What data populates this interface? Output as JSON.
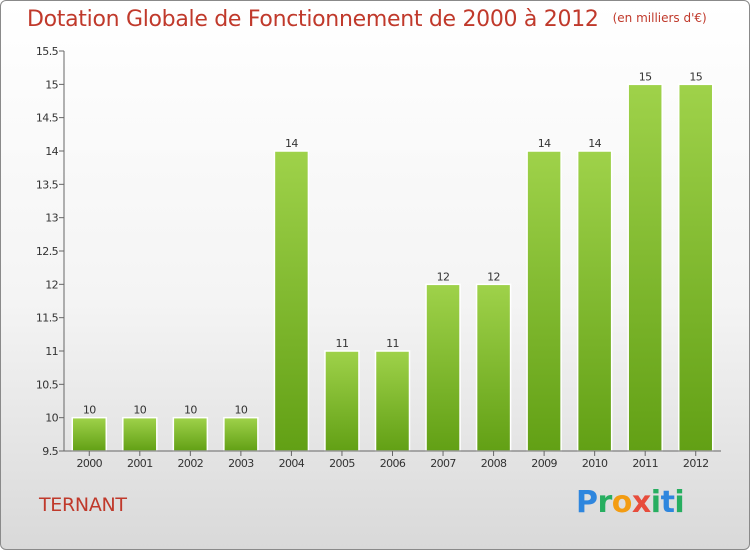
{
  "chart_data": {
    "type": "bar",
    "title": "Dotation Globale de Fonctionnement de 2000 à 2012",
    "subtitle": "(en milliers d'€)",
    "categories": [
      "2000",
      "2001",
      "2002",
      "2003",
      "2004",
      "2005",
      "2006",
      "2007",
      "2008",
      "2009",
      "2010",
      "2011",
      "2012"
    ],
    "values": [
      10,
      10,
      10,
      10,
      14,
      11,
      11,
      12,
      12,
      14,
      14,
      15,
      15
    ],
    "ylim": [
      9.5,
      15.5
    ],
    "yticks": [
      9.5,
      10,
      10.5,
      11,
      11.5,
      12,
      12.5,
      13,
      13.5,
      14,
      14.5,
      15,
      15.5
    ],
    "grid": false,
    "bar_color": "#7fba2c"
  },
  "footer": {
    "commune": "TERNANT",
    "logo": [
      "P",
      "r",
      "o",
      "x",
      "i",
      "t",
      "i"
    ]
  }
}
